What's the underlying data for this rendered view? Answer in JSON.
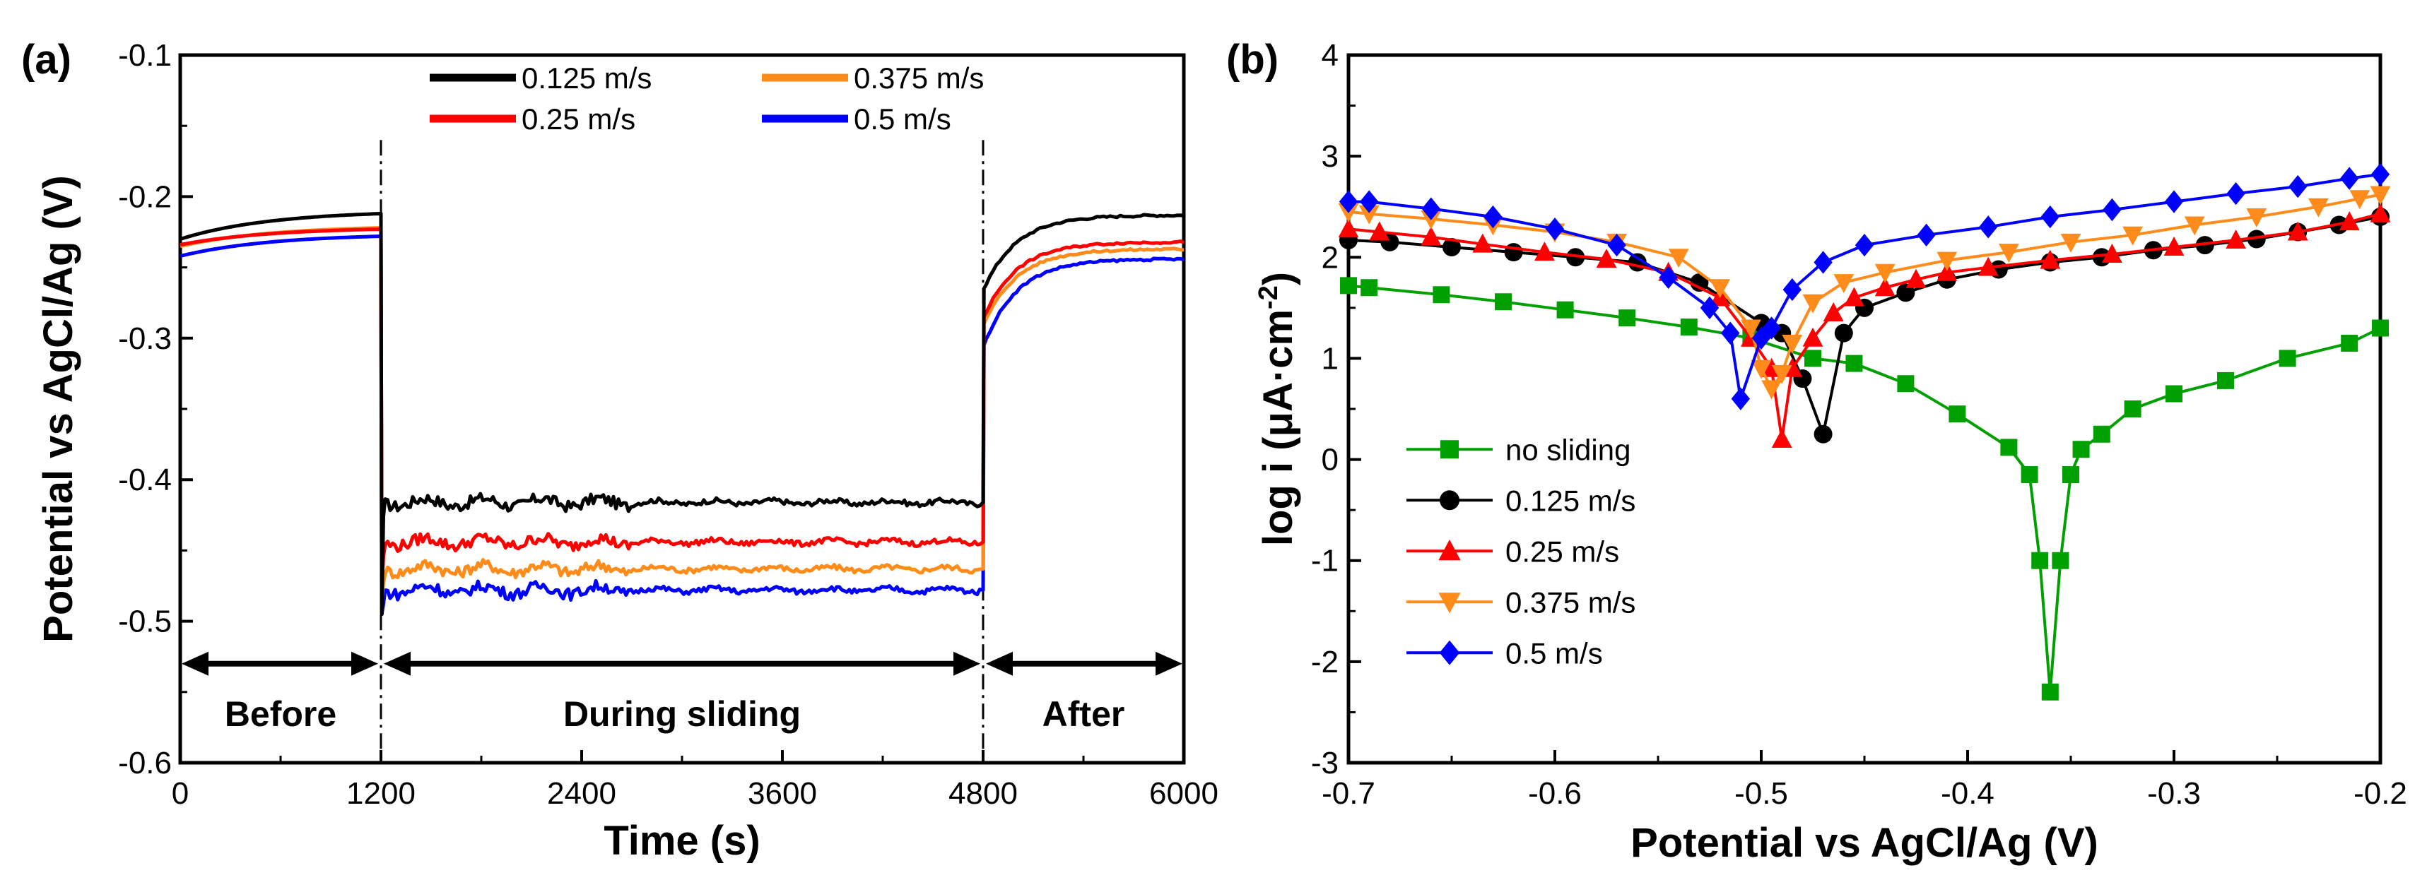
{
  "chart_data": [
    {
      "id": "a",
      "panel_label": "(a)",
      "type": "line",
      "xlabel": "Time (s)",
      "ylabel": "Potential vs AgCl/Ag (V)",
      "xlim": [
        0,
        6000
      ],
      "ylim": [
        -0.6,
        -0.1
      ],
      "xticks": [
        0,
        1200,
        2400,
        3600,
        4800,
        6000
      ],
      "xtick_labels": [
        "0",
        "1200",
        "2400",
        "3600",
        "4800",
        "6000"
      ],
      "yticks": [
        -0.6,
        -0.5,
        -0.4,
        -0.3,
        -0.2,
        -0.1
      ],
      "ytick_labels": [
        "-0.6",
        "-0.5",
        "-0.4",
        "-0.3",
        "-0.2",
        "-0.1"
      ],
      "legend_position": "top",
      "series": [
        {
          "name": "0.125 m/s",
          "color": "#000000",
          "pre": [
            -0.23,
            -0.212
          ],
          "during": -0.416,
          "post": [
            -0.265,
            -0.213
          ]
        },
        {
          "name": "0.375 m/s",
          "color": "#ff8c1a",
          "pre": [
            -0.235,
            -0.222
          ],
          "during": -0.463,
          "post": [
            -0.29,
            -0.237
          ]
        },
        {
          "name": "0.25 m/s",
          "color": "#ff0000",
          "pre": [
            -0.234,
            -0.223
          ],
          "during": -0.444,
          "post": [
            -0.285,
            -0.232
          ]
        },
        {
          "name": "0.5 m/s",
          "color": "#0000ff",
          "pre": [
            -0.242,
            -0.228
          ],
          "during": -0.478,
          "post": [
            -0.305,
            -0.244
          ]
        }
      ],
      "dividers": [
        1200,
        4800
      ],
      "arrow_y": -0.53,
      "annotations": [
        {
          "text": "Before",
          "x": 600,
          "y": -0.565
        },
        {
          "text": "During sliding",
          "x": 3000,
          "y": -0.565
        },
        {
          "text": "After",
          "x": 5400,
          "y": -0.565
        }
      ]
    },
    {
      "id": "b",
      "panel_label": "(b)",
      "type": "line",
      "xlabel": "Potential vs AgCl/Ag (V)",
      "ylabel": "log i (μA·cm-2)",
      "xlim": [
        -0.7,
        -0.2
      ],
      "ylim": [
        -3,
        4
      ],
      "xticks": [
        -0.7,
        -0.6,
        -0.5,
        -0.4,
        -0.3,
        -0.2
      ],
      "xtick_labels": [
        "-0.7",
        "-0.6",
        "-0.5",
        "-0.4",
        "-0.3",
        "-0.2"
      ],
      "yticks": [
        -3,
        -2,
        -1,
        0,
        1,
        2,
        3,
        4
      ],
      "ytick_labels": [
        "-3",
        "-2",
        "-1",
        "0",
        "1",
        "2",
        "3",
        "4"
      ],
      "legend_position": "bottom-left",
      "series": [
        {
          "name": "no sliding",
          "color": "#00a000",
          "marker": "square",
          "x": [
            -0.7,
            -0.69,
            -0.655,
            -0.625,
            -0.595,
            -0.565,
            -0.535,
            -0.505,
            -0.475,
            -0.455,
            -0.43,
            -0.405,
            -0.38,
            -0.37,
            -0.365,
            -0.36,
            -0.355,
            -0.35,
            -0.345,
            -0.335,
            -0.32,
            -0.3,
            -0.275,
            -0.245,
            -0.215,
            -0.2
          ],
          "y": [
            1.72,
            1.7,
            1.63,
            1.56,
            1.48,
            1.4,
            1.31,
            1.2,
            1.0,
            0.95,
            0.75,
            0.45,
            0.12,
            -0.15,
            -1.0,
            -2.3,
            -1.0,
            -0.15,
            0.1,
            0.25,
            0.5,
            0.65,
            0.78,
            1.0,
            1.15,
            1.3
          ]
        },
        {
          "name": "0.125 m/s",
          "color": "#000000",
          "marker": "circle",
          "x": [
            -0.7,
            -0.68,
            -0.65,
            -0.62,
            -0.59,
            -0.56,
            -0.53,
            -0.5,
            -0.49,
            -0.48,
            -0.47,
            -0.46,
            -0.45,
            -0.43,
            -0.41,
            -0.385,
            -0.36,
            -0.335,
            -0.31,
            -0.285,
            -0.26,
            -0.24,
            -0.22,
            -0.2
          ],
          "y": [
            2.17,
            2.15,
            2.1,
            2.05,
            2.0,
            1.95,
            1.75,
            1.35,
            1.25,
            0.8,
            0.25,
            1.25,
            1.5,
            1.65,
            1.78,
            1.88,
            1.95,
            2.0,
            2.07,
            2.12,
            2.18,
            2.25,
            2.32,
            2.4
          ]
        },
        {
          "name": "0.25 m/s",
          "color": "#ff0000",
          "marker": "triangle-up",
          "x": [
            -0.7,
            -0.685,
            -0.66,
            -0.635,
            -0.605,
            -0.575,
            -0.545,
            -0.52,
            -0.505,
            -0.495,
            -0.49,
            -0.485,
            -0.475,
            -0.465,
            -0.455,
            -0.44,
            -0.425,
            -0.41,
            -0.39,
            -0.36,
            -0.33,
            -0.3,
            -0.27,
            -0.24,
            -0.215,
            -0.2
          ],
          "y": [
            2.28,
            2.25,
            2.2,
            2.13,
            2.05,
            1.98,
            1.85,
            1.6,
            1.2,
            0.9,
            0.2,
            0.9,
            1.2,
            1.45,
            1.6,
            1.7,
            1.78,
            1.85,
            1.9,
            1.97,
            2.03,
            2.1,
            2.17,
            2.25,
            2.35,
            2.43
          ]
        },
        {
          "name": "0.375 m/s",
          "color": "#ff8c1a",
          "marker": "triangle-down",
          "x": [
            -0.7,
            -0.69,
            -0.66,
            -0.63,
            -0.6,
            -0.57,
            -0.54,
            -0.52,
            -0.505,
            -0.5,
            -0.495,
            -0.49,
            -0.485,
            -0.475,
            -0.46,
            -0.44,
            -0.41,
            -0.38,
            -0.35,
            -0.32,
            -0.29,
            -0.26,
            -0.23,
            -0.21,
            -0.2
          ],
          "y": [
            2.45,
            2.43,
            2.38,
            2.32,
            2.25,
            2.15,
            2.0,
            1.7,
            1.3,
            0.9,
            0.7,
            0.85,
            1.15,
            1.55,
            1.75,
            1.85,
            1.97,
            2.05,
            2.15,
            2.22,
            2.32,
            2.4,
            2.5,
            2.58,
            2.62
          ]
        },
        {
          "name": "0.5 m/s",
          "color": "#0000ff",
          "marker": "diamond",
          "x": [
            -0.7,
            -0.69,
            -0.66,
            -0.63,
            -0.6,
            -0.57,
            -0.545,
            -0.525,
            -0.515,
            -0.51,
            -0.5,
            -0.495,
            -0.485,
            -0.47,
            -0.45,
            -0.42,
            -0.39,
            -0.36,
            -0.33,
            -0.3,
            -0.27,
            -0.24,
            -0.215,
            -0.2
          ],
          "y": [
            2.55,
            2.55,
            2.48,
            2.4,
            2.28,
            2.12,
            1.8,
            1.5,
            1.25,
            0.6,
            1.2,
            1.3,
            1.68,
            1.95,
            2.12,
            2.22,
            2.3,
            2.4,
            2.47,
            2.55,
            2.63,
            2.7,
            2.78,
            2.82
          ]
        }
      ]
    }
  ]
}
